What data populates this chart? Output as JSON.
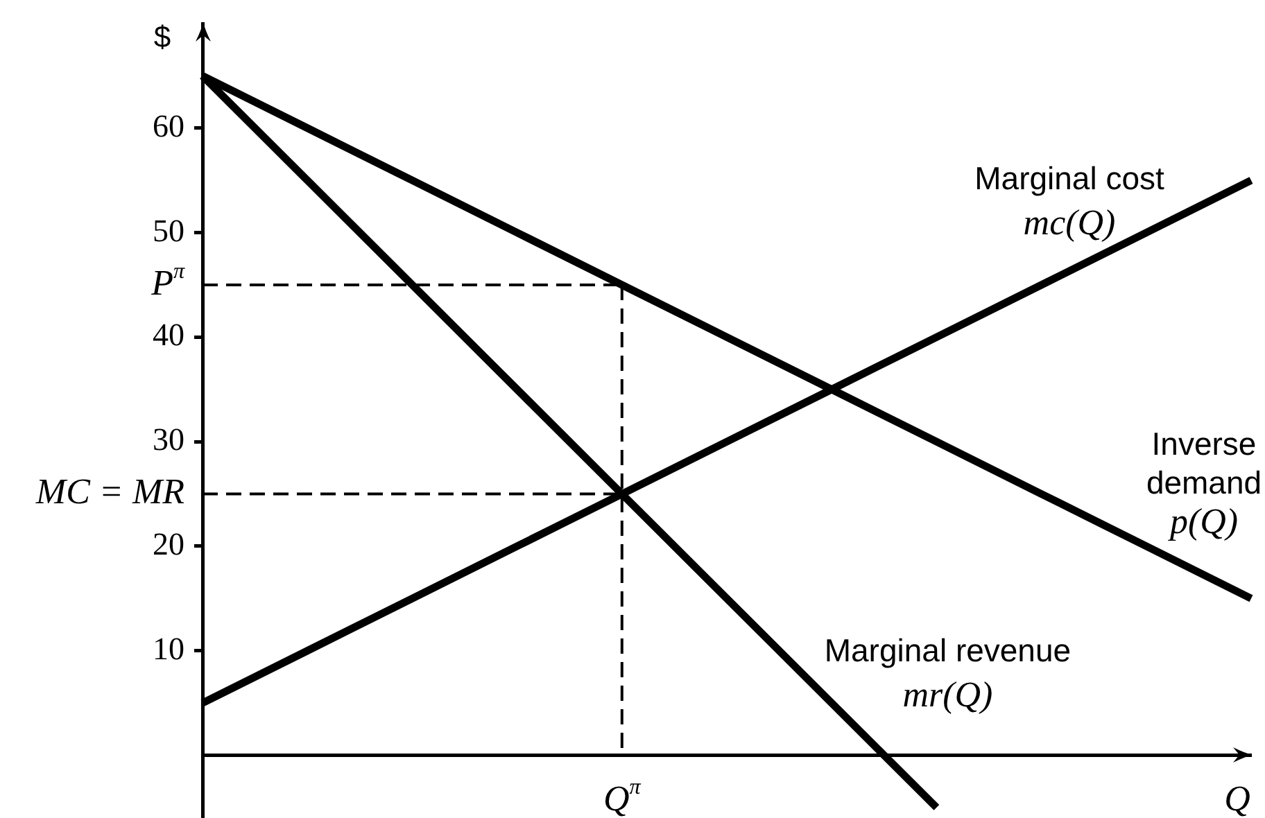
{
  "chart_data": {
    "type": "line",
    "xlabel": "Q",
    "ylabel": "$",
    "categories": [
      null,
      null,
      null,
      null,
      "Q$^{π}$",
      null,
      null,
      null,
      null,
      null,
      null
    ],
    "ylim": [
      -6,
      70
    ],
    "yticks": [
      10,
      20,
      {
        "value": 25,
        "label": "MC = MR"
      },
      30,
      40,
      {
        "value": 45,
        "label": "P$^{π}$"
      },
      50,
      60
    ],
    "series": [
      {
        "name": "Inverse\ndemand\np(Q)",
        "color": "#000000",
        "values": [
          65,
          60,
          55,
          50,
          45,
          40,
          35,
          30,
          25,
          20,
          15
        ]
      },
      {
        "name": "Marginal revenue\nmr(Q)",
        "color": "#000000",
        "values": [
          65,
          55,
          45,
          35,
          25,
          15,
          5,
          -5,
          null,
          null,
          null
        ]
      },
      {
        "name": "Marginal cost\nmc(Q)",
        "color": "#000000",
        "values": [
          5,
          10,
          15,
          20,
          25,
          30,
          35,
          40,
          45,
          50,
          55
        ]
      },
      {
        "color": "#000000",
        "line_style": "dashed",
        "values": [
          45,
          45,
          45,
          45,
          45,
          null,
          null,
          null,
          null,
          null,
          null
        ]
      },
      {
        "color": "#000000",
        "line_style": "dashed",
        "values": [
          25,
          25,
          25,
          25,
          25,
          null,
          null,
          null,
          null,
          null,
          null
        ]
      },
      {
        "color": "#000000",
        "line_style": "dashed",
        "x": [
          "Q$^{π}$",
          "Q$^{π}$"
        ],
        "values": [
          45,
          0
        ]
      }
    ],
    "marker": "none",
    "grid": false,
    "legend": false
  }
}
